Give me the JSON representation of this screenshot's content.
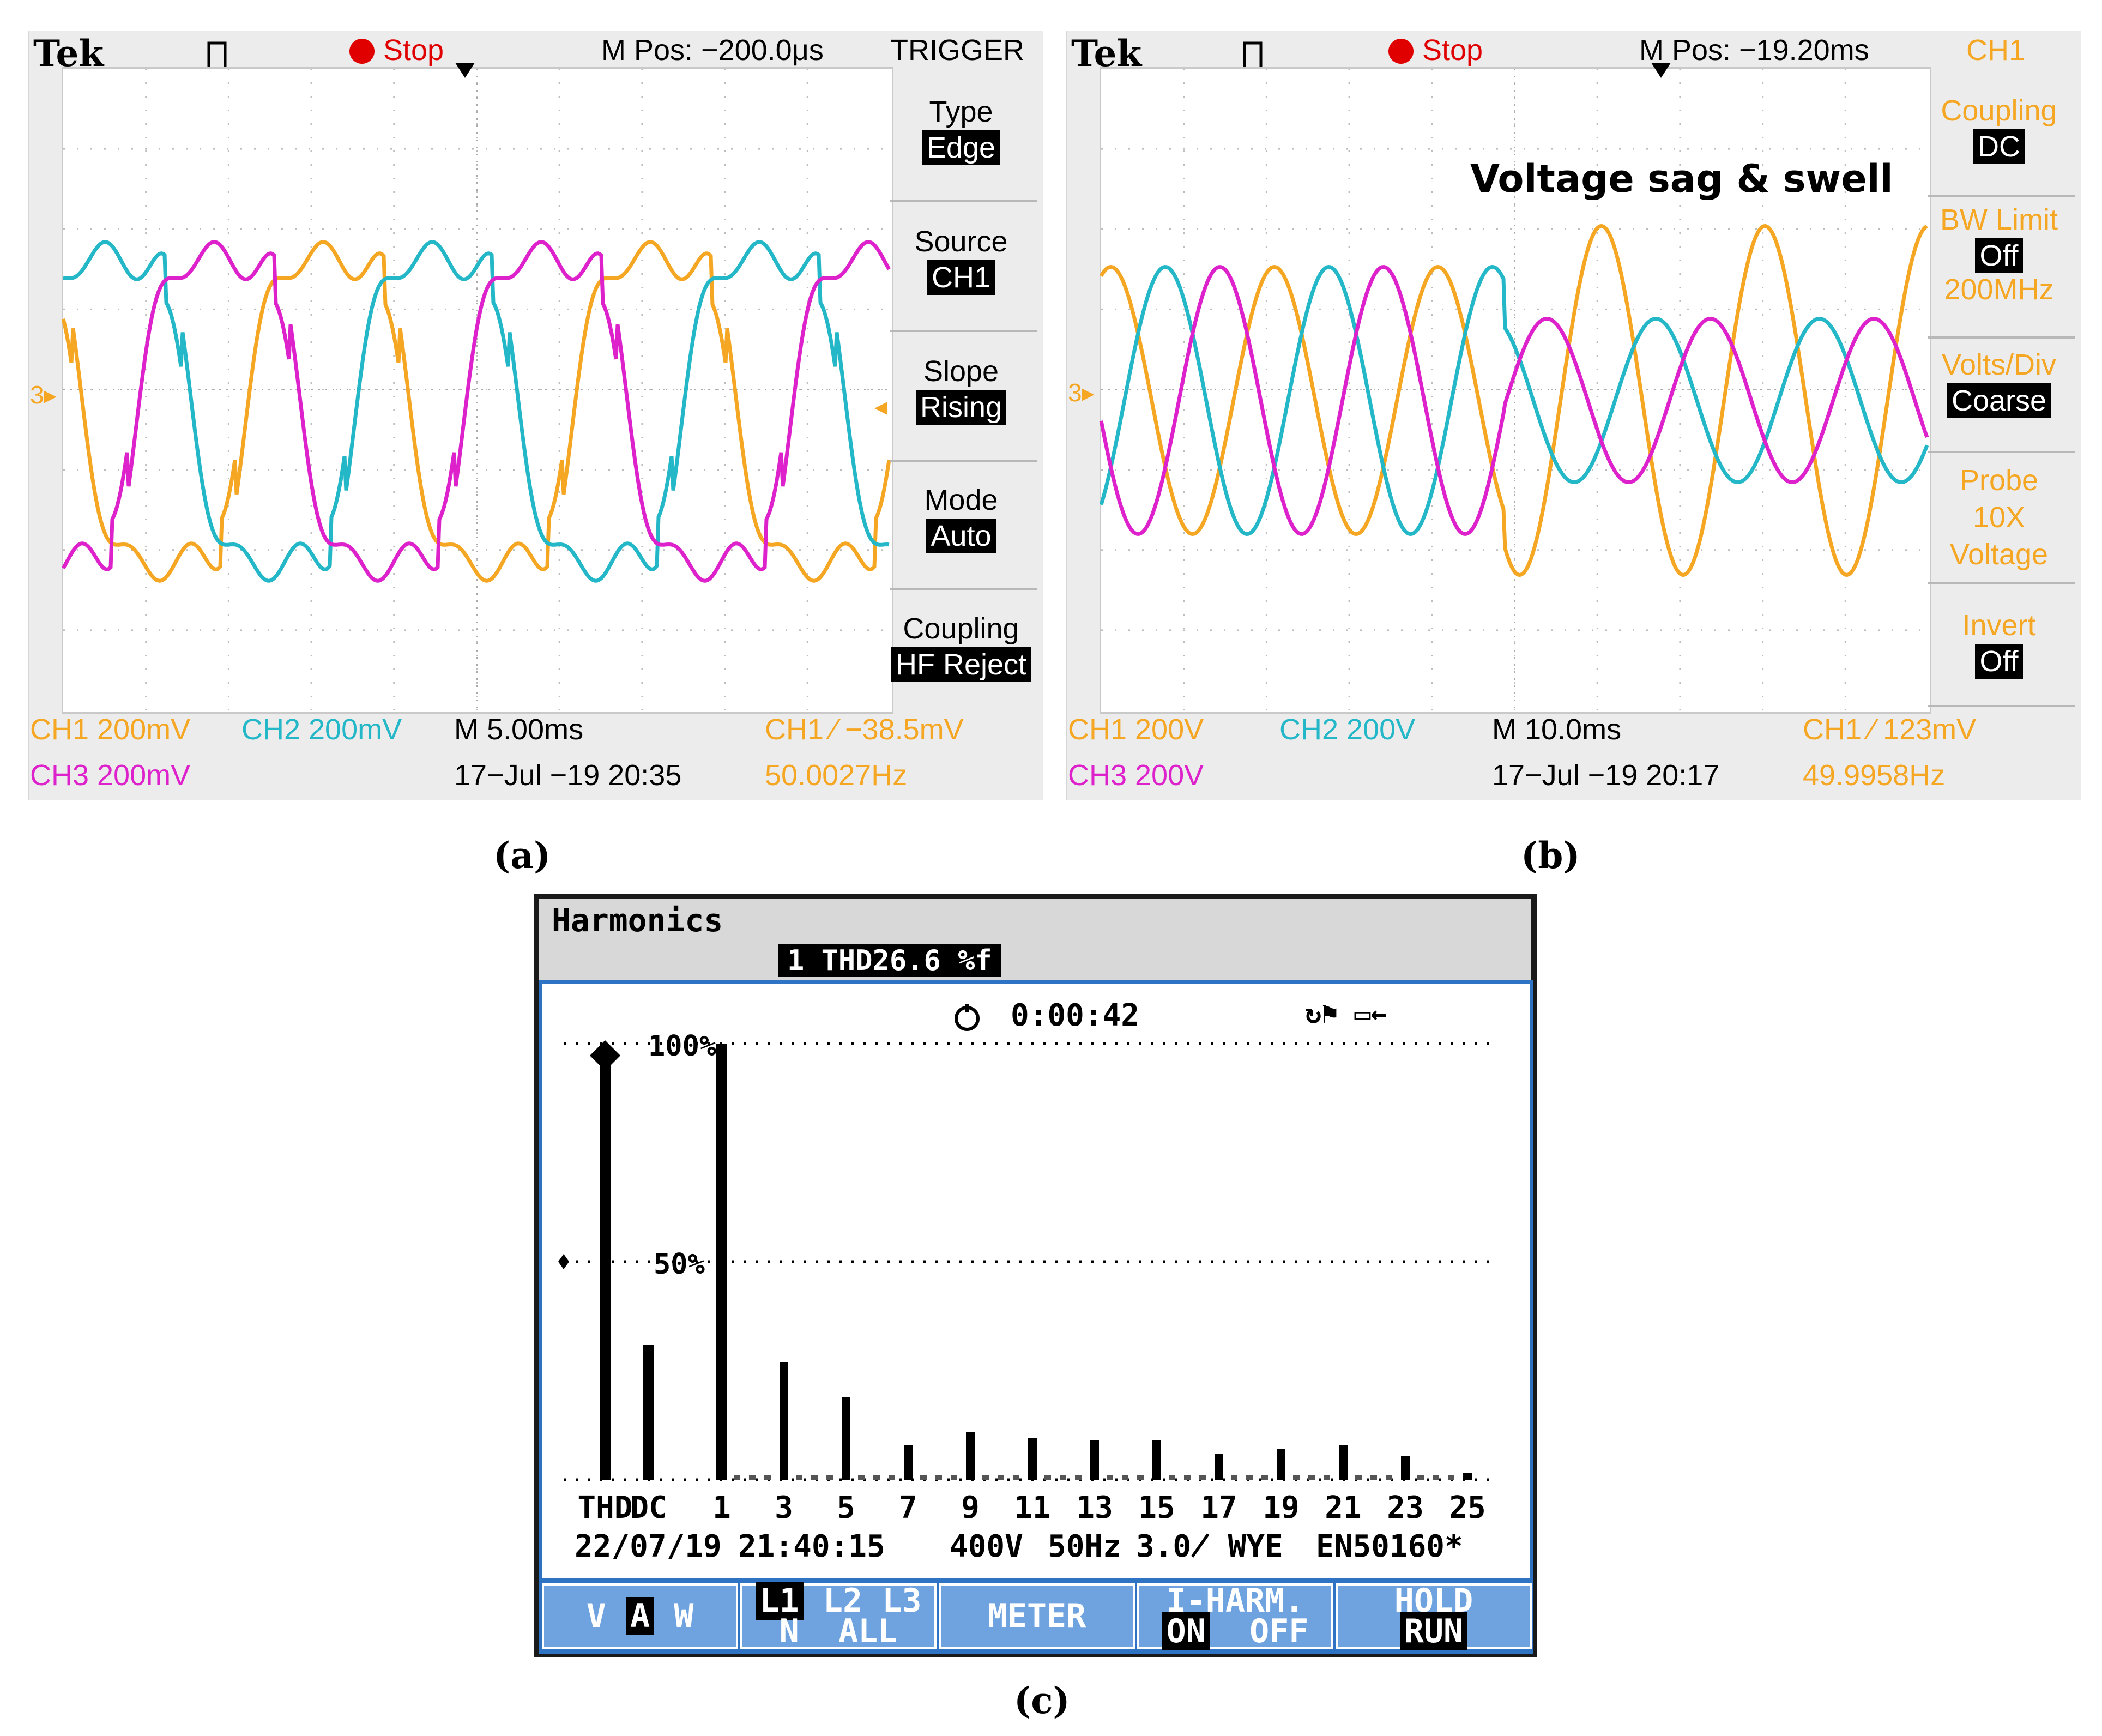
{
  "panel_a": {
    "brand": "Tek",
    "status": "Stop",
    "m_pos": "M Pos: −200.0μs",
    "menu_title": "TRIGGER",
    "menu": [
      {
        "label": "Type",
        "value": "Edge"
      },
      {
        "label": "Source",
        "value": "CH1"
      },
      {
        "label": "Slope",
        "value": "Rising"
      },
      {
        "label": "Mode",
        "value": "Auto"
      },
      {
        "label": "Coupling",
        "value": "HF Reject"
      }
    ],
    "ch1": "CH1  200mV",
    "ch2": "CH2  200mV",
    "ch3": "CH3  200mV",
    "timebase": "M 5.00ms",
    "datetime": "17−Jul −19 20:35",
    "trigger": "CH1 ∕ −38.5mV",
    "freq": "50.0027Hz",
    "marker": "3▸",
    "caption": "(a)"
  },
  "panel_b": {
    "brand": "Tek",
    "status": "Stop",
    "m_pos": "M Pos: −19.20ms",
    "menu_title": "CH1",
    "annotation": "Voltage sag & swell",
    "menu": [
      {
        "label": "Coupling",
        "value": "DC"
      },
      {
        "label": "BW Limit",
        "value": "Off",
        "extra": "200MHz"
      },
      {
        "label": "Volts/Div",
        "value": "Coarse"
      },
      {
        "label": "Probe",
        "lines": [
          "10X",
          "Voltage"
        ]
      },
      {
        "label": "Invert",
        "value": "Off"
      }
    ],
    "ch1": "CH1  200V",
    "ch2": "CH2  200V",
    "ch3": "CH3  200V",
    "timebase": "M 10.0ms",
    "datetime": "17−Jul −19 20:17",
    "trigger": "CH1 ∕ 123mV",
    "freq": "49.9958Hz",
    "marker": "3▸",
    "caption": "(b)"
  },
  "panel_c": {
    "title": "Harmonics",
    "thd_tag": "1 THD26.6 %f",
    "timer": "0:00:42",
    "label_100": "100%",
    "label_50": "50%",
    "x_labels": [
      "THD",
      "DC",
      "1",
      "3",
      "5",
      "7",
      "9",
      "11",
      "13",
      "15",
      "17",
      "19",
      "21",
      "23",
      "25"
    ],
    "date": "22/07/19",
    "time": "21:40:15",
    "voltage": "400V",
    "frequency": "50Hz",
    "config": "3.0̸ WYE",
    "standard": "EN50160*",
    "keys": {
      "vaw_v": "V",
      "vaw_a": "A",
      "vaw_w": "W",
      "l1": "L1",
      "l2": "L2",
      "l3": "L3",
      "n": "N",
      "all": "ALL",
      "meter": "METER",
      "iharm": "I-HARM.",
      "on": "ON",
      "off": "OFF",
      "hold": "HOLD",
      "run": "RUN"
    },
    "caption": "(c)"
  },
  "chart_data": {
    "type": "bar",
    "categories": [
      "THD",
      "DC",
      "1",
      "3",
      "5",
      "7",
      "9",
      "11",
      "13",
      "15",
      "17",
      "19",
      "21",
      "23",
      "25"
    ],
    "values": [
      97,
      31,
      100,
      27,
      19,
      8,
      11,
      9.5,
      9,
      9,
      6,
      7,
      8,
      5.5,
      1.5
    ],
    "ylim": [
      0,
      100
    ],
    "y_ticks": [
      "50%",
      "100%"
    ],
    "grid": "dotted",
    "colors": {
      "bars": "#000000",
      "frame": "#2e73c4"
    }
  },
  "colors": {
    "ch1": "#f5a623",
    "ch2": "#23b7c7",
    "ch3": "#dd22cc"
  }
}
